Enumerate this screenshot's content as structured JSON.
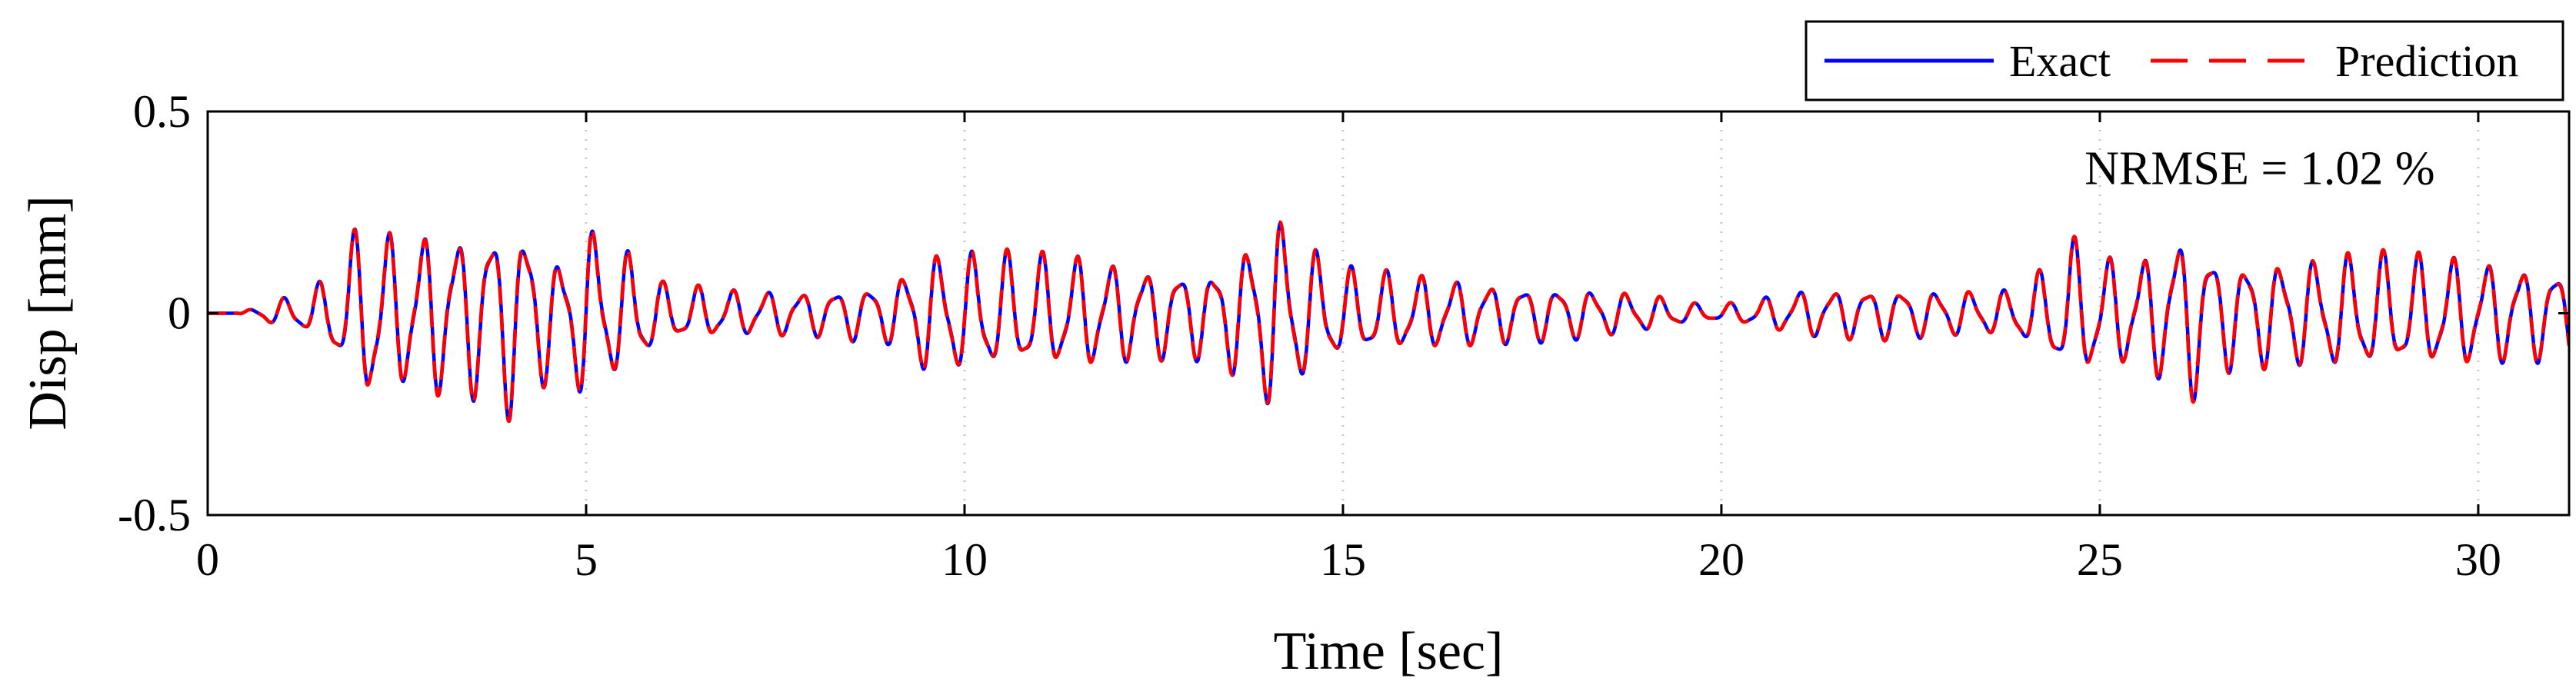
{
  "chart_data": {
    "type": "line",
    "xlabel": "Time [sec]",
    "ylabel": "Disp [mm]",
    "xlim": [
      0,
      31.2
    ],
    "ylim": [
      -0.5,
      0.5
    ],
    "xticks": [
      0,
      5,
      10,
      15,
      20,
      25,
      30
    ],
    "yticks": [
      -0.5,
      0,
      0.5
    ],
    "ytick_labels": [
      "-0.5",
      "0",
      "0.5"
    ],
    "grid": "dotted vertical lines at x ticks",
    "legend": {
      "placement": "above-right",
      "orientation": "horizontal"
    },
    "annotation": {
      "text": "NRMSE = 1.02 %",
      "x": 24.8,
      "y": 0.32
    },
    "series": [
      {
        "name": "Exact",
        "color": "#0000ff",
        "style": "solid",
        "frequency_hz": 2.2,
        "envelope": [
          [
            0,
            0
          ],
          [
            0.4,
            0
          ],
          [
            0.7,
            0.02
          ],
          [
            1.0,
            0.04
          ],
          [
            1.3,
            0.05
          ],
          [
            1.6,
            0.1
          ],
          [
            1.9,
            0.2
          ],
          [
            2.1,
            0.25
          ],
          [
            2.5,
            0.2
          ],
          [
            3.0,
            0.22
          ],
          [
            3.5,
            0.22
          ],
          [
            4.0,
            0.27
          ],
          [
            4.4,
            0.2
          ],
          [
            4.7,
            0.13
          ],
          [
            5.0,
            0.25
          ],
          [
            5.3,
            0.18
          ],
          [
            5.7,
            0.15
          ],
          [
            6.0,
            0.08
          ],
          [
            7.0,
            0.06
          ],
          [
            8.0,
            0.06
          ],
          [
            9.0,
            0.08
          ],
          [
            9.5,
            0.16
          ],
          [
            10.5,
            0.16
          ],
          [
            11.5,
            0.15
          ],
          [
            12.5,
            0.12
          ],
          [
            13.3,
            0.12
          ],
          [
            13.8,
            0.2
          ],
          [
            14.1,
            0.27
          ],
          [
            14.5,
            0.18
          ],
          [
            15.0,
            0.12
          ],
          [
            16.0,
            0.1
          ],
          [
            17.0,
            0.08
          ],
          [
            18.0,
            0.07
          ],
          [
            19.0,
            0.05
          ],
          [
            19.8,
            0.02
          ],
          [
            20.3,
            0.03
          ],
          [
            21.0,
            0.06
          ],
          [
            22.0,
            0.07
          ],
          [
            23.0,
            0.06
          ],
          [
            23.8,
            0.06
          ],
          [
            24.3,
            0.12
          ],
          [
            24.6,
            0.2
          ],
          [
            25.0,
            0.15
          ],
          [
            25.5,
            0.14
          ],
          [
            26.2,
            0.23
          ],
          [
            26.6,
            0.15
          ],
          [
            27.5,
            0.14
          ],
          [
            28.5,
            0.16
          ],
          [
            29.5,
            0.15
          ],
          [
            30.5,
            0.13
          ],
          [
            31.2,
            0.12
          ]
        ]
      },
      {
        "name": "Prediction",
        "color": "#ff0000",
        "style": "dashed",
        "frequency_hz": 2.2,
        "envelope": [
          [
            0,
            0
          ],
          [
            0.4,
            0
          ],
          [
            0.7,
            0.02
          ],
          [
            1.0,
            0.04
          ],
          [
            1.3,
            0.05
          ],
          [
            1.6,
            0.1
          ],
          [
            1.9,
            0.2
          ],
          [
            2.1,
            0.25
          ],
          [
            2.5,
            0.2
          ],
          [
            3.0,
            0.22
          ],
          [
            3.5,
            0.22
          ],
          [
            4.0,
            0.27
          ],
          [
            4.4,
            0.2
          ],
          [
            4.7,
            0.13
          ],
          [
            5.0,
            0.25
          ],
          [
            5.3,
            0.18
          ],
          [
            5.7,
            0.15
          ],
          [
            6.0,
            0.08
          ],
          [
            7.0,
            0.06
          ],
          [
            8.0,
            0.06
          ],
          [
            9.0,
            0.08
          ],
          [
            9.5,
            0.16
          ],
          [
            10.5,
            0.16
          ],
          [
            11.5,
            0.15
          ],
          [
            12.5,
            0.12
          ],
          [
            13.3,
            0.12
          ],
          [
            13.8,
            0.2
          ],
          [
            14.1,
            0.27
          ],
          [
            14.5,
            0.18
          ],
          [
            15.0,
            0.12
          ],
          [
            16.0,
            0.1
          ],
          [
            17.0,
            0.08
          ],
          [
            18.0,
            0.07
          ],
          [
            19.0,
            0.05
          ],
          [
            19.8,
            0.02
          ],
          [
            20.3,
            0.03
          ],
          [
            21.0,
            0.06
          ],
          [
            22.0,
            0.07
          ],
          [
            23.0,
            0.06
          ],
          [
            23.8,
            0.06
          ],
          [
            24.3,
            0.12
          ],
          [
            24.6,
            0.2
          ],
          [
            25.0,
            0.15
          ],
          [
            25.5,
            0.14
          ],
          [
            26.2,
            0.23
          ],
          [
            26.6,
            0.15
          ],
          [
            27.5,
            0.14
          ],
          [
            28.5,
            0.16
          ],
          [
            29.5,
            0.15
          ],
          [
            30.5,
            0.13
          ],
          [
            31.2,
            0.12
          ]
        ]
      }
    ]
  }
}
